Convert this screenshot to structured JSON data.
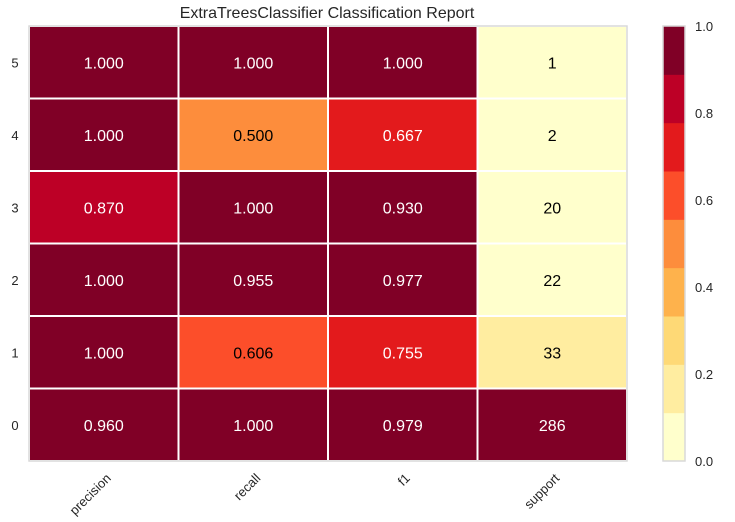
{
  "chart_data": {
    "type": "heatmap",
    "title": "ExtraTreesClassifier Classification Report",
    "columns": [
      "precision",
      "recall",
      "f1",
      "support"
    ],
    "rows": [
      "5",
      "4",
      "3",
      "2",
      "1",
      "0"
    ],
    "values": [
      [
        1.0,
        1.0,
        1.0,
        1
      ],
      [
        1.0,
        0.5,
        0.667,
        2
      ],
      [
        0.87,
        1.0,
        0.93,
        20
      ],
      [
        1.0,
        0.955,
        0.977,
        22
      ],
      [
        1.0,
        0.606,
        0.755,
        33
      ],
      [
        0.96,
        1.0,
        0.979,
        286
      ]
    ],
    "value_labels": [
      [
        "1.000",
        "1.000",
        "1.000",
        "1"
      ],
      [
        "1.000",
        "0.500",
        "0.667",
        "2"
      ],
      [
        "0.870",
        "1.000",
        "0.930",
        "20"
      ],
      [
        "1.000",
        "0.955",
        "0.977",
        "22"
      ],
      [
        "1.000",
        "0.606",
        "0.755",
        "33"
      ],
      [
        "0.960",
        "1.000",
        "0.979",
        "286"
      ]
    ],
    "color_values": [
      [
        1.0,
        1.0,
        1.0,
        0.0035
      ],
      [
        1.0,
        0.5,
        0.667,
        0.007
      ],
      [
        0.87,
        1.0,
        0.93,
        0.07
      ],
      [
        1.0,
        0.955,
        0.977,
        0.077
      ],
      [
        1.0,
        0.606,
        0.755,
        0.115
      ],
      [
        0.96,
        1.0,
        0.979,
        1.0
      ]
    ],
    "colorbar": {
      "range": [
        0.0,
        1.0
      ],
      "ticks": [
        "0.0",
        "0.2",
        "0.4",
        "0.6",
        "0.8",
        "1.0"
      ],
      "colors": [
        "#ffffcc",
        "#ffeda0",
        "#fed976",
        "#feb24c",
        "#fd8d3c",
        "#fc4e2a",
        "#e31a1c",
        "#bd0026",
        "#800026"
      ]
    },
    "grid": false,
    "xtick_rotation": 45
  }
}
